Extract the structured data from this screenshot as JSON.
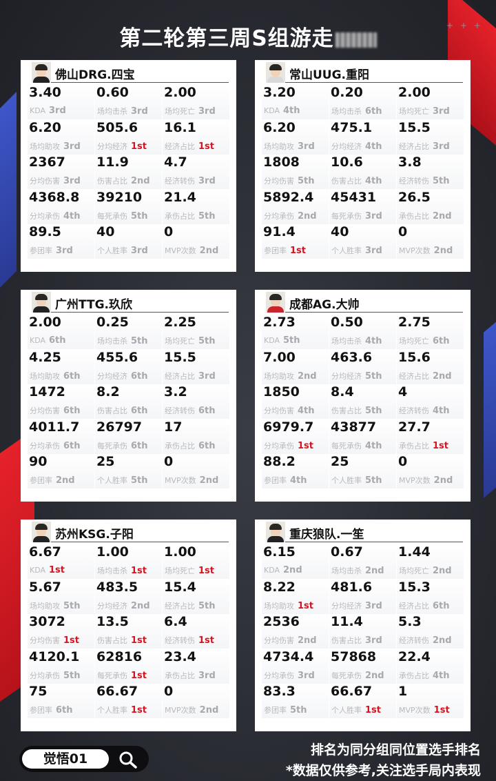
{
  "title": "第二轮第三周S组游走",
  "deco_dots": "+ + +",
  "cards": [
    {
      "player": "佛山DRG.四宝",
      "stats": [
        {
          "value": "3.40",
          "label": "KDA",
          "rank": "3rd"
        },
        {
          "value": "0.60",
          "label": "场均击杀",
          "rank": "3rd"
        },
        {
          "value": "2.00",
          "label": "场均死亡",
          "rank": "3rd"
        },
        {
          "value": "6.20",
          "label": "场均助攻",
          "rank": "3rd"
        },
        {
          "value": "505.6",
          "label": "分均经济",
          "rank": "1st"
        },
        {
          "value": "16.1",
          "label": "经济占比",
          "rank": "1st"
        },
        {
          "value": "2367",
          "label": "分均伤害",
          "rank": "3rd"
        },
        {
          "value": "11.9",
          "label": "伤害占比",
          "rank": "2nd"
        },
        {
          "value": "4.7",
          "label": "经济转伤",
          "rank": "3rd"
        },
        {
          "value": "4368.8",
          "label": "分均承伤",
          "rank": "4th"
        },
        {
          "value": "39210",
          "label": "每死承伤",
          "rank": "5th"
        },
        {
          "value": "21.4",
          "label": "承伤占比",
          "rank": "5th"
        },
        {
          "value": "89.5",
          "label": "参团率",
          "rank": "3rd"
        },
        {
          "value": "40",
          "label": "个人胜率",
          "rank": "3rd"
        },
        {
          "value": "0",
          "label": "MVP次数",
          "rank": "2nd"
        }
      ]
    },
    {
      "player": "常山UUG.重阳",
      "stats": [
        {
          "value": "3.20",
          "label": "KDA",
          "rank": "4th"
        },
        {
          "value": "0.20",
          "label": "场均击杀",
          "rank": "6th"
        },
        {
          "value": "2.00",
          "label": "场均死亡",
          "rank": "3rd"
        },
        {
          "value": "6.20",
          "label": "场均助攻",
          "rank": "3rd"
        },
        {
          "value": "475.1",
          "label": "分均经济",
          "rank": "4th"
        },
        {
          "value": "15.5",
          "label": "经济占比",
          "rank": "3rd"
        },
        {
          "value": "1808",
          "label": "分均伤害",
          "rank": "5th"
        },
        {
          "value": "10.6",
          "label": "伤害占比",
          "rank": "4th"
        },
        {
          "value": "3.8",
          "label": "经济转伤",
          "rank": "5th"
        },
        {
          "value": "5892.4",
          "label": "分均承伤",
          "rank": "2nd"
        },
        {
          "value": "45431",
          "label": "每死承伤",
          "rank": "3rd"
        },
        {
          "value": "26.5",
          "label": "承伤占比",
          "rank": "2nd"
        },
        {
          "value": "91.4",
          "label": "参团率",
          "rank": "1st"
        },
        {
          "value": "40",
          "label": "个人胜率",
          "rank": "3rd"
        },
        {
          "value": "0",
          "label": "MVP次数",
          "rank": "2nd"
        }
      ]
    },
    {
      "player": "广州TTG.玖欣",
      "stats": [
        {
          "value": "2.00",
          "label": "KDA",
          "rank": "6th"
        },
        {
          "value": "0.25",
          "label": "场均击杀",
          "rank": "5th"
        },
        {
          "value": "2.25",
          "label": "场均死亡",
          "rank": "5th"
        },
        {
          "value": "4.25",
          "label": "场均助攻",
          "rank": "6th"
        },
        {
          "value": "455.6",
          "label": "分均经济",
          "rank": "6th"
        },
        {
          "value": "15.5",
          "label": "经济占比",
          "rank": "3rd"
        },
        {
          "value": "1472",
          "label": "分均伤害",
          "rank": "6th"
        },
        {
          "value": "8.2",
          "label": "伤害占比",
          "rank": "6th"
        },
        {
          "value": "3.2",
          "label": "经济转伤",
          "rank": "6th"
        },
        {
          "value": "4011.7",
          "label": "分均承伤",
          "rank": "6th"
        },
        {
          "value": "26797",
          "label": "每死承伤",
          "rank": "6th"
        },
        {
          "value": "17",
          "label": "承伤占比",
          "rank": "6th"
        },
        {
          "value": "90",
          "label": "参团率",
          "rank": "2nd"
        },
        {
          "value": "25",
          "label": "个人胜率",
          "rank": "5th"
        },
        {
          "value": "0",
          "label": "MVP次数",
          "rank": "2nd"
        }
      ]
    },
    {
      "player": "成都AG.大帅",
      "stats": [
        {
          "value": "2.73",
          "label": "KDA",
          "rank": "5th"
        },
        {
          "value": "0.50",
          "label": "场均击杀",
          "rank": "4th"
        },
        {
          "value": "2.75",
          "label": "场均死亡",
          "rank": "6th"
        },
        {
          "value": "7.00",
          "label": "场均助攻",
          "rank": "2nd"
        },
        {
          "value": "463.6",
          "label": "分均经济",
          "rank": "5th"
        },
        {
          "value": "15.6",
          "label": "经济占比",
          "rank": "2nd"
        },
        {
          "value": "1850",
          "label": "分均伤害",
          "rank": "4th"
        },
        {
          "value": "8.4",
          "label": "伤害占比",
          "rank": "5th"
        },
        {
          "value": "4",
          "label": "经济转伤",
          "rank": "4th"
        },
        {
          "value": "6979.7",
          "label": "分均承伤",
          "rank": "1st"
        },
        {
          "value": "43877",
          "label": "每死承伤",
          "rank": "4th"
        },
        {
          "value": "27.7",
          "label": "承伤占比",
          "rank": "1st"
        },
        {
          "value": "88.2",
          "label": "参团率",
          "rank": "4th"
        },
        {
          "value": "25",
          "label": "个人胜率",
          "rank": "5th"
        },
        {
          "value": "0",
          "label": "MVP次数",
          "rank": "2nd"
        }
      ]
    },
    {
      "player": "苏州KSG.子阳",
      "stats": [
        {
          "value": "6.67",
          "label": "KDA",
          "rank": "1st"
        },
        {
          "value": "1.00",
          "label": "场均击杀",
          "rank": "1st"
        },
        {
          "value": "1.00",
          "label": "场均死亡",
          "rank": "1st"
        },
        {
          "value": "5.67",
          "label": "场均助攻",
          "rank": "5th"
        },
        {
          "value": "483.5",
          "label": "分均经济",
          "rank": "2nd"
        },
        {
          "value": "15.4",
          "label": "经济占比",
          "rank": "5th"
        },
        {
          "value": "3072",
          "label": "分均伤害",
          "rank": "1st"
        },
        {
          "value": "13.5",
          "label": "伤害占比",
          "rank": "1st"
        },
        {
          "value": "6.4",
          "label": "经济转伤",
          "rank": "1st"
        },
        {
          "value": "4120.1",
          "label": "分均承伤",
          "rank": "5th"
        },
        {
          "value": "62816",
          "label": "每死承伤",
          "rank": "1st"
        },
        {
          "value": "23.4",
          "label": "承伤占比",
          "rank": "3rd"
        },
        {
          "value": "75",
          "label": "参团率",
          "rank": "6th"
        },
        {
          "value": "66.67",
          "label": "个人胜率",
          "rank": "1st"
        },
        {
          "value": "0",
          "label": "MVP次数",
          "rank": "2nd"
        }
      ]
    },
    {
      "player": "重庆狼队.一笙",
      "stats": [
        {
          "value": "6.15",
          "label": "KDA",
          "rank": "2nd"
        },
        {
          "value": "0.67",
          "label": "场均击杀",
          "rank": "2nd"
        },
        {
          "value": "1.44",
          "label": "场均死亡",
          "rank": "2nd"
        },
        {
          "value": "8.22",
          "label": "场均助攻",
          "rank": "1st"
        },
        {
          "value": "481.6",
          "label": "分均经济",
          "rank": "3rd"
        },
        {
          "value": "15.3",
          "label": "经济占比",
          "rank": "6th"
        },
        {
          "value": "2536",
          "label": "分均伤害",
          "rank": "2nd"
        },
        {
          "value": "11.4",
          "label": "伤害占比",
          "rank": "3rd"
        },
        {
          "value": "5.3",
          "label": "经济转伤",
          "rank": "2nd"
        },
        {
          "value": "4734.4",
          "label": "分均承伤",
          "rank": "3rd"
        },
        {
          "value": "57868",
          "label": "每死承伤",
          "rank": "2nd"
        },
        {
          "value": "22.4",
          "label": "承伤占比",
          "rank": "4th"
        },
        {
          "value": "83.3",
          "label": "参团率",
          "rank": "5th"
        },
        {
          "value": "66.67",
          "label": "个人胜率",
          "rank": "1st"
        },
        {
          "value": "1",
          "label": "MVP次数",
          "rank": "1st"
        }
      ]
    }
  ],
  "search": {
    "text": "觉悟01",
    "icon": "search-icon"
  },
  "footer": {
    "line1": "排名为同分组同位置选手排名",
    "line2": "*数据仅供参考,关注选手局内表现"
  },
  "colors": {
    "first_rank": "#d8121f",
    "other_rank": "#a8a8ad",
    "accent_red": "#e8222b",
    "accent_blue": "#3d56c9"
  }
}
